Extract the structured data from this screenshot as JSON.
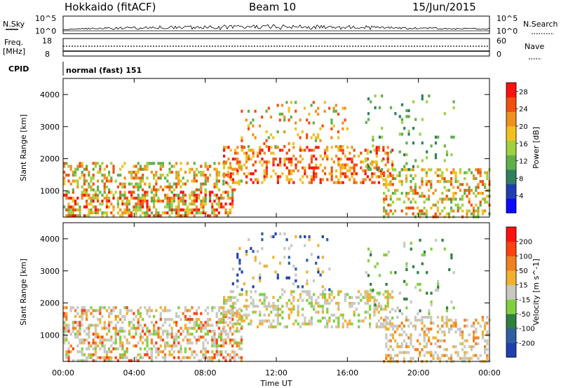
{
  "header": {
    "station": "Hokkaido (fitACF)",
    "beam": "Beam 10",
    "date": "15/Jun/2015"
  },
  "noise_panel": {
    "left_label": "N.Sky",
    "right_label": "N.Search",
    "left_ticks": [
      "10^5",
      "10^0"
    ],
    "right_ticks": [
      "10^5",
      "10^0"
    ]
  },
  "freq_panel": {
    "left_label_line1": "Freq.",
    "left_label_line2": "[MHz]",
    "right_label": "Nave",
    "left_ticks": [
      "18",
      "8"
    ],
    "right_ticks": [
      "60",
      "0"
    ]
  },
  "cpid_panel": {
    "label": "CPID",
    "text": "normal (fast) 151"
  },
  "colors": {
    "power_scale": [
      "#0a0aff",
      "#1f3fb0",
      "#2f7f5f",
      "#5fb04a",
      "#9fd040",
      "#f0c020",
      "#f09020",
      "#f05010",
      "#ff1010"
    ],
    "velocity_scale": [
      "#1f3fb0",
      "#2f5fa0",
      "#2f7f3f",
      "#7fd040",
      "#c8c8c0",
      "#f0b030",
      "#f08020",
      "#ff4010",
      "#ff1010"
    ]
  },
  "chart_data": [
    {
      "type": "heatmap",
      "title": "",
      "xlabel": "",
      "ylabel": "Slant Range [km]",
      "x_ticks": [
        "00:00",
        "04:00",
        "08:00",
        "12:00",
        "16:00",
        "20:00",
        "00:00"
      ],
      "y_ticks": [
        1000,
        2000,
        3000,
        4000
      ],
      "xlim_hours": [
        0,
        24
      ],
      "ylim_km": [
        180,
        4500
      ],
      "colorbar": {
        "label": "Power [dB]",
        "ticks": [
          4,
          8,
          12,
          16,
          20,
          24,
          28
        ],
        "range": [
          0,
          30
        ]
      }
    },
    {
      "type": "heatmap",
      "title": "",
      "xlabel": "Time UT",
      "ylabel": "Slant Range [km]",
      "x_ticks": [
        "00:00",
        "04:00",
        "08:00",
        "12:00",
        "16:00",
        "20:00",
        "00:00"
      ],
      "y_ticks": [
        1000,
        2000,
        3000,
        4000
      ],
      "xlim_hours": [
        0,
        24
      ],
      "ylim_km": [
        180,
        4500
      ],
      "colorbar": {
        "label": "Velocity [m s^-1]",
        "ticks": [
          200,
          100,
          50,
          15,
          -15,
          -50,
          -100,
          -200
        ],
        "range": [
          -250,
          250
        ]
      }
    }
  ]
}
